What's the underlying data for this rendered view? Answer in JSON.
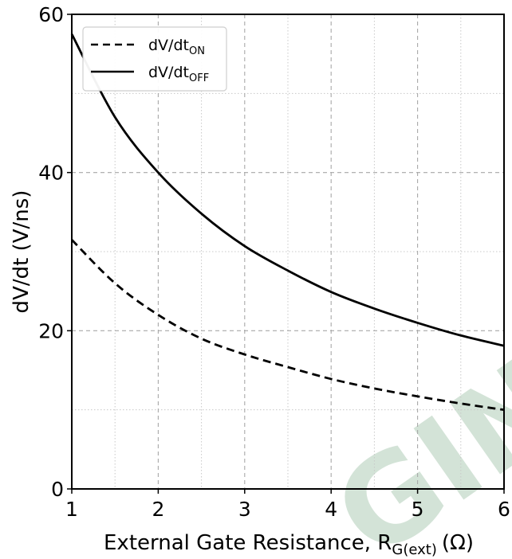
{
  "watermark": {
    "text": "GINE"
  },
  "chart_data": {
    "type": "line",
    "title": "",
    "xlabel": {
      "main": "External Gate Resistance, R",
      "sub": "G(ext)",
      "unit": "(Ω)"
    },
    "ylabel": "dV/dt (V/ns)",
    "xlim": [
      1,
      6
    ],
    "ylim": [
      0,
      60
    ],
    "xticks": [
      1,
      2,
      3,
      4,
      5,
      6
    ],
    "yticks": [
      0,
      20,
      40,
      60
    ],
    "grid": true,
    "legend_position": "top-left",
    "x": [
      1.0,
      1.5,
      2.0,
      2.5,
      3.0,
      3.5,
      4.0,
      4.5,
      5.0,
      5.5,
      6.0
    ],
    "series": [
      {
        "name": "dV/dt",
        "name_sub": "ON",
        "style": "dashed",
        "color": "#000000",
        "values": [
          31.5,
          26.0,
          22.0,
          19.0,
          17.0,
          15.4,
          13.9,
          12.7,
          11.7,
          10.8,
          10.0
        ]
      },
      {
        "name": "dV/dt",
        "name_sub": "OFF",
        "style": "solid",
        "color": "#000000",
        "values": [
          57.5,
          47.0,
          40.0,
          34.8,
          30.7,
          27.6,
          24.9,
          22.8,
          21.0,
          19.4,
          18.1
        ]
      }
    ]
  }
}
